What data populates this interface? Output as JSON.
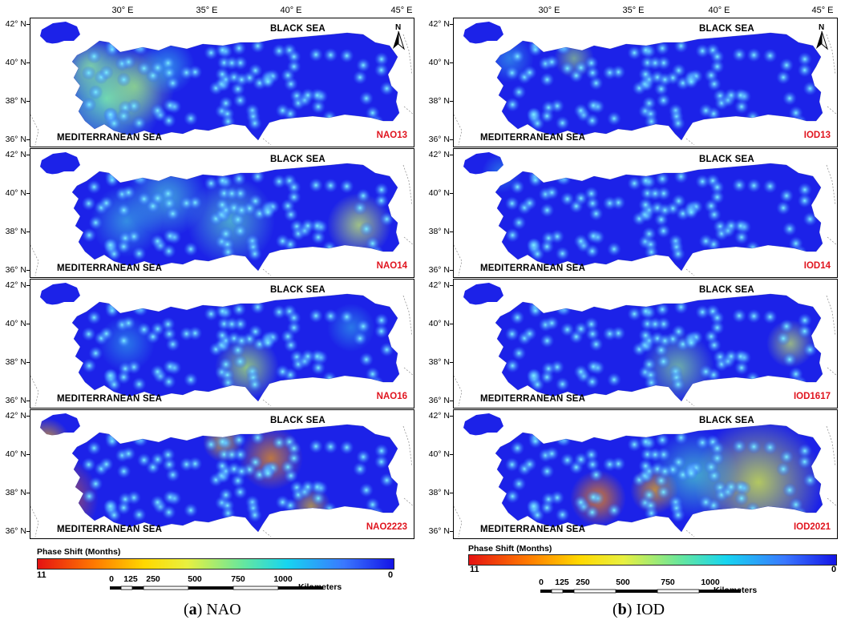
{
  "longitude_ticks": [
    "30° E",
    "35° E",
    "40° E",
    "45° E"
  ],
  "latitude_ticks": [
    "42° N",
    "40° N",
    "38° N",
    "36° N"
  ],
  "black_sea_label": "BLACK SEA",
  "med_sea_label": "MEDITERRANEAN SEA",
  "north_label": "N",
  "legend": {
    "title": "Phase Shift (Months)",
    "min": "11",
    "max": "0",
    "colors": [
      "#e51212",
      "#ff7a00",
      "#ffd800",
      "#e8f040",
      "#64e6a0",
      "#17d5f0",
      "#3a78ff",
      "#1414e6"
    ]
  },
  "scale_bar": {
    "labels": [
      "0",
      "125",
      "250",
      "500",
      "750",
      "1000"
    ],
    "unit": "Kilometers"
  },
  "left": {
    "caption_letter": "(a)",
    "caption_text": "NAO",
    "panels": [
      "NAO13",
      "NAO14",
      "NAO16",
      "NAO2223"
    ]
  },
  "right": {
    "caption_letter": "(b)",
    "caption_text": "IOD",
    "panels": [
      "IOD13",
      "IOD14",
      "IOD1617",
      "IOD2021"
    ]
  }
}
